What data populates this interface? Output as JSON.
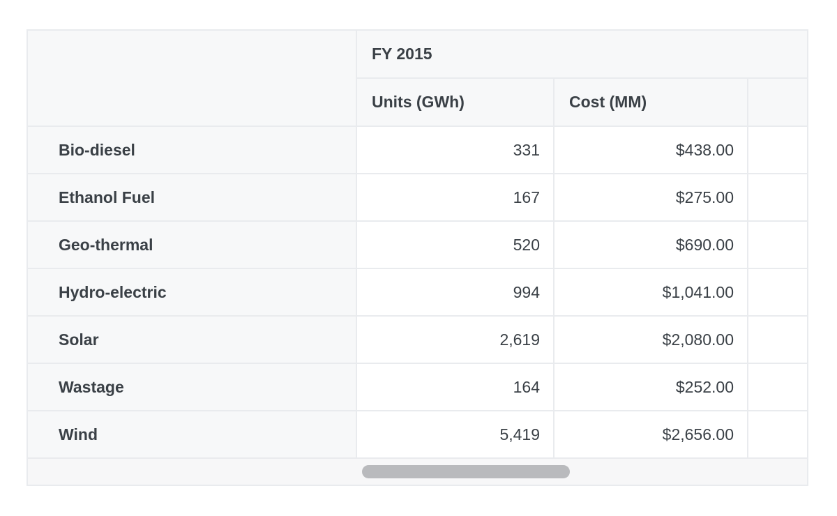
{
  "table": {
    "group_header": "FY 2015",
    "columns": [
      {
        "label": "Units (GWh)"
      },
      {
        "label": "Cost (MM)"
      },
      {
        "label": ""
      }
    ],
    "rows": [
      {
        "label": "Bio-diesel",
        "units": "331",
        "cost": "$438.00"
      },
      {
        "label": "Ethanol Fuel",
        "units": "167",
        "cost": "$275.00"
      },
      {
        "label": "Geo-thermal",
        "units": "520",
        "cost": "$690.00"
      },
      {
        "label": "Hydro-electric",
        "units": "994",
        "cost": "$1,041.00"
      },
      {
        "label": "Solar",
        "units": "2,619",
        "cost": "$2,080.00"
      },
      {
        "label": "Wastage",
        "units": "164",
        "cost": "$252.00"
      },
      {
        "label": "Wind",
        "units": "5,419",
        "cost": "$2,656.00"
      }
    ],
    "scrollbar": {
      "orientation": "horizontal"
    }
  },
  "colors": {
    "header_bg": "#f7f8f9",
    "cell_bg": "#ffffff",
    "border_inner": "#e9ebee",
    "border_outer": "#e2e4e8",
    "text": "#3a4046",
    "scroll_thumb": "#b9babd",
    "scroll_track": "#f7f7f8"
  }
}
